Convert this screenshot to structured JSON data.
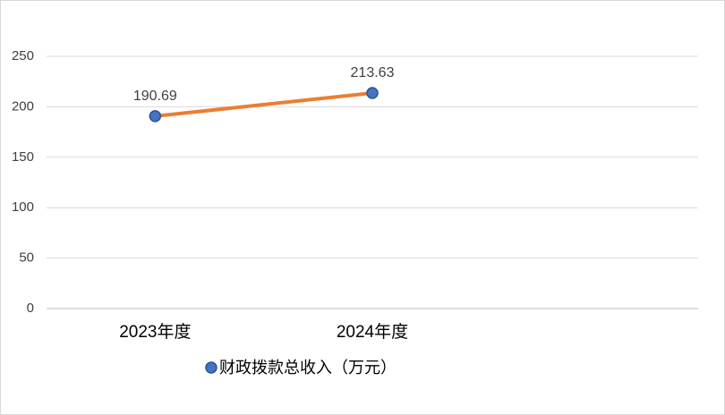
{
  "chart_data": {
    "type": "line",
    "categories": [
      "2023年度",
      "2024年度",
      null
    ],
    "series": [
      {
        "name": "财政拨款总收入（万元）",
        "color": "#ed7d31",
        "marker_color": "#4472c4",
        "values": [
          190.69,
          213.63,
          null
        ]
      }
    ],
    "ylim": [
      0,
      250
    ],
    "yticks": [
      0,
      50,
      100,
      150,
      200,
      250
    ],
    "grid": true,
    "legend": "bottom"
  }
}
